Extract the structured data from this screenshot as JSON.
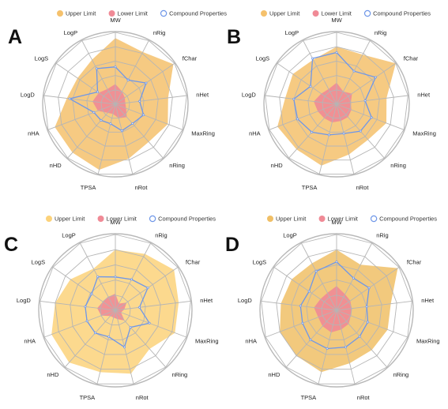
{
  "chart_data": [
    {
      "panel": "A",
      "type": "radar",
      "axes": [
        "MW",
        "nRig",
        "fChar",
        "nHet",
        "MaxRing",
        "nRing",
        "nRot",
        "TPSA",
        "nHD",
        "nHA",
        "LogD",
        "LogS",
        "LogP"
      ],
      "rmax": 5,
      "legend": {
        "position": "top",
        "entries": [
          "Upper Limit",
          "Lower Limit",
          "Compound Properties"
        ]
      },
      "series": [
        {
          "name": "Upper Limit",
          "color": "#f5c16c",
          "style": "filled",
          "values": [
            4.6,
            4.1,
            4.9,
            3.7,
            3.9,
            3.5,
            3.9,
            4.7,
            4.5,
            4.5,
            3.4,
            3.2,
            3.5
          ]
        },
        {
          "name": "Lower Limit",
          "color": "#f08a96",
          "style": "filled",
          "values": [
            1.4,
            1.0,
            0.8,
            0.7,
            0.8,
            1.2,
            1.0,
            0.7,
            0.8,
            1.3,
            1.6,
            1.4,
            1.2
          ]
        },
        {
          "name": "Compound Properties",
          "color": "#6f97e8",
          "style": "line",
          "values": [
            2.6,
            1.9,
            2.6,
            1.7,
            2.1,
            1.8,
            1.9,
            1.4,
            1.5,
            1.6,
            3.2,
            1.5,
            2.8
          ]
        }
      ]
    },
    {
      "panel": "B",
      "type": "radar",
      "axes": [
        "MW",
        "nRig",
        "fChar",
        "nHet",
        "MaxRing",
        "nRing",
        "nRot",
        "TPSA",
        "nHD",
        "nHA",
        "LogD",
        "LogS",
        "LogP"
      ],
      "rmax": 5,
      "legend": {
        "position": "top",
        "entries": [
          "Upper Limit",
          "Lower Limit",
          "Compound Properties"
        ]
      },
      "series": [
        {
          "name": "Upper Limit",
          "color": "#f5c16c",
          "style": "filled",
          "values": [
            4.0,
            3.9,
            5.0,
            3.5,
            3.7,
            3.3,
            3.6,
            4.4,
            4.2,
            4.4,
            3.6,
            3.7,
            3.5
          ]
        },
        {
          "name": "Lower Limit",
          "color": "#f08a96",
          "style": "filled",
          "values": [
            1.5,
            1.0,
            1.3,
            1.0,
            1.1,
            1.2,
            1.2,
            1.3,
            1.3,
            1.4,
            1.6,
            1.3,
            1.2
          ]
        },
        {
          "name": "Compound Properties",
          "color": "#6f97e8",
          "style": "line",
          "values": [
            3.6,
            2.6,
            3.3,
            2.0,
            2.6,
            2.5,
            2.1,
            2.2,
            2.6,
            2.9,
            3.0,
            2.2,
            3.6
          ]
        }
      ]
    },
    {
      "panel": "C",
      "type": "radar",
      "axes": [
        "MW",
        "nRig",
        "fChar",
        "nHet",
        "MaxRing",
        "nRing",
        "nRot",
        "TPSA",
        "nHD",
        "nHA",
        "LogD",
        "LogS",
        "LogP"
      ],
      "rmax": 5,
      "legend": {
        "position": "top",
        "entries": [
          "Upper Limit",
          "Lower Limit",
          "Compound Properties"
        ]
      },
      "series": [
        {
          "name": "Upper Limit",
          "color": "#fcd27a",
          "style": "filled",
          "values": [
            4.0,
            4.2,
            4.7,
            4.2,
            4.2,
            3.4,
            4.3,
            4.2,
            4.6,
            4.5,
            4.0,
            3.6,
            3.1
          ]
        },
        {
          "name": "Lower Limit",
          "color": "#f08a96",
          "style": "filled",
          "values": [
            1.1,
            0.5,
            0.9,
            0.6,
            0.4,
            0.9,
            0.6,
            0.5,
            0.5,
            1.0,
            1.2,
            1.0,
            1.0
          ]
        },
        {
          "name": "Compound Properties",
          "color": "#6f97e8",
          "style": "line",
          "values": [
            2.2,
            2.3,
            2.6,
            1.6,
            2.4,
            1.5,
            2.5,
            1.8,
            2.0,
            2.0,
            2.0,
            1.9,
            2.5
          ]
        }
      ]
    },
    {
      "panel": "D",
      "type": "radar",
      "axes": [
        "MW",
        "nRig",
        "fChar",
        "nHet",
        "MaxRing",
        "nRing",
        "nRot",
        "TPSA",
        "nHD",
        "nHA",
        "LogD",
        "LogS",
        "LogP"
      ],
      "rmax": 5,
      "legend": {
        "position": "top",
        "entries": [
          "Upper Limit",
          "Lower Limit",
          "Compound Properties"
        ]
      },
      "series": [
        {
          "name": "Upper Limit",
          "color": "#f0bf66",
          "style": "filled",
          "values": [
            4.0,
            3.4,
            4.9,
            3.6,
            3.6,
            3.5,
            3.6,
            4.2,
            4.0,
            4.0,
            3.7,
            3.6,
            3.5
          ]
        },
        {
          "name": "Lower Limit",
          "color": "#f08a96",
          "style": "filled",
          "values": [
            1.6,
            1.2,
            1.1,
            1.0,
            1.0,
            1.2,
            1.3,
            1.5,
            1.4,
            1.3,
            1.5,
            1.3,
            1.3
          ]
        },
        {
          "name": "Compound Properties",
          "color": "#6f97e8",
          "style": "line",
          "values": [
            3.2,
            2.4,
            2.6,
            2.0,
            2.2,
            2.3,
            2.5,
            2.6,
            2.6,
            2.4,
            2.4,
            2.2,
            2.9
          ]
        }
      ]
    }
  ]
}
